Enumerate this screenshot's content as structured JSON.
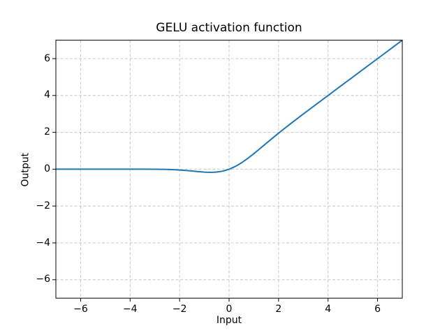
{
  "figure": {
    "background": "#ffffff"
  },
  "chart_data": {
    "type": "line",
    "title": "GELU activation function",
    "xlabel": "Input",
    "ylabel": "Output",
    "xlim": [
      -7,
      7
    ],
    "ylim": [
      -7,
      7
    ],
    "xticks": [
      -6,
      -4,
      -2,
      0,
      2,
      4,
      6
    ],
    "xtick_labels": [
      "−6",
      "−4",
      "−2",
      "0",
      "2",
      "4",
      "6"
    ],
    "yticks": [
      -6,
      -4,
      -2,
      0,
      2,
      4,
      6
    ],
    "ytick_labels": [
      "−6",
      "−4",
      "−2",
      "0",
      "2",
      "4",
      "6"
    ],
    "grid": {
      "on": true,
      "linestyle": "dashed",
      "color": "#b0b0b0",
      "opacity": 0.7
    },
    "axes": {
      "spine_color": "#000000",
      "tick_color": "#000000",
      "text_color": "#000000"
    },
    "legend": {
      "visible": false
    },
    "series": [
      {
        "name": "GELU",
        "color": "#1f77b4",
        "linewidth": 2,
        "x": [
          -7.0,
          -6.0,
          -5.0,
          -4.5,
          -4.0,
          -3.5,
          -3.0,
          -2.75,
          -2.5,
          -2.25,
          -2.0,
          -1.75,
          -1.5,
          -1.25,
          -1.0,
          -0.9,
          -0.8,
          -0.75,
          -0.7,
          -0.6,
          -0.5,
          -0.4,
          -0.3,
          -0.25,
          -0.2,
          -0.1,
          0.0,
          0.1,
          0.2,
          0.25,
          0.3,
          0.4,
          0.5,
          0.75,
          1.0,
          1.25,
          1.5,
          1.75,
          2.0,
          2.25,
          2.5,
          2.75,
          3.0,
          3.5,
          4.0,
          4.5,
          5.0,
          5.5,
          6.0,
          6.5,
          7.0
        ],
        "y": [
          0.0,
          0.0,
          0.0,
          0.0,
          -0.0001,
          -0.0008,
          -0.004,
          -0.0082,
          -0.0155,
          -0.0275,
          -0.0455,
          -0.0702,
          -0.1002,
          -0.132,
          -0.1587,
          -0.1657,
          -0.1695,
          -0.17,
          -0.1694,
          -0.1646,
          -0.1543,
          -0.1378,
          -0.1146,
          -0.1003,
          -0.0841,
          -0.046,
          0.0,
          0.054,
          0.1159,
          0.1497,
          0.1854,
          0.2622,
          0.3457,
          0.58,
          0.8413,
          1.118,
          1.3998,
          1.6798,
          1.9545,
          2.2225,
          2.4845,
          2.7418,
          2.996,
          3.4992,
          3.9999,
          4.5,
          5.0,
          5.5,
          6.0,
          6.5,
          7.0
        ]
      }
    ]
  }
}
